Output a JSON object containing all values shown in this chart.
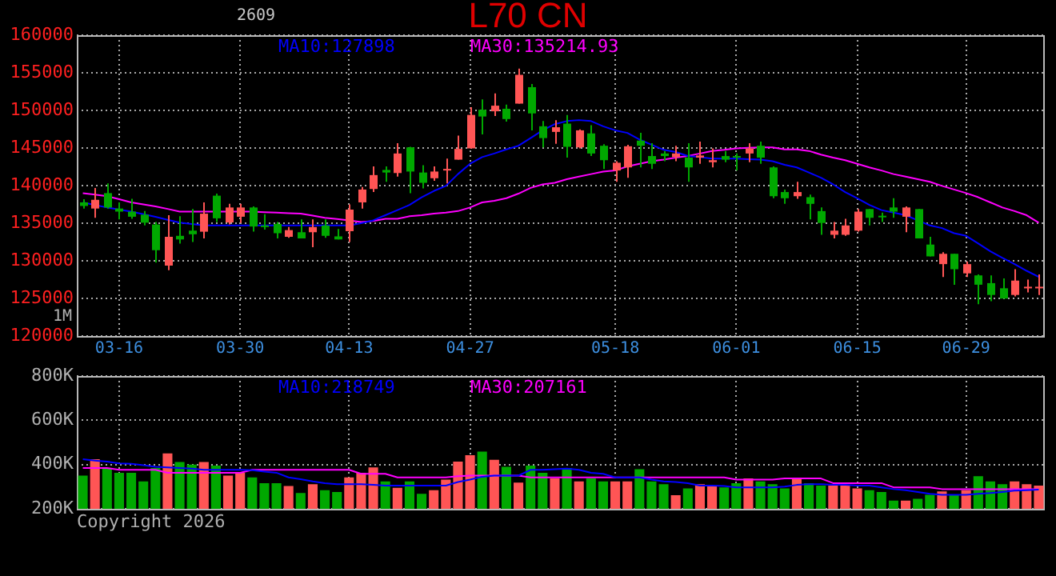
{
  "chart_data": [
    {
      "type": "candlestick",
      "title": "L70 CN",
      "subtitle": "2609",
      "annotations": [
        "1M"
      ],
      "categories": [
        null,
        null,
        null,
        "03-16",
        null,
        null,
        null,
        null,
        null,
        null,
        null,
        null,
        null,
        "03-30",
        null,
        null,
        null,
        null,
        null,
        null,
        null,
        null,
        "04-13",
        null,
        null,
        null,
        null,
        null,
        null,
        null,
        null,
        null,
        "04-27",
        null,
        null,
        null,
        null,
        null,
        null,
        null,
        null,
        null,
        null,
        null,
        "05-18",
        null,
        null,
        null,
        null,
        null,
        null,
        null,
        null,
        null,
        "06-01",
        null,
        null,
        null,
        null,
        null,
        null,
        null,
        null,
        null,
        "06-15",
        null,
        null,
        null,
        null,
        null,
        null,
        null,
        null,
        "06-29",
        null,
        null,
        null,
        null,
        null,
        null
      ],
      "ohlc": [
        [
          137770,
          138180,
          136950,
          137290
        ],
        [
          136950,
          139690,
          135720,
          138110
        ],
        [
          139000,
          140300,
          136950,
          137090
        ],
        [
          136950,
          137770,
          135510,
          136540
        ],
        [
          136540,
          138250,
          135580,
          135860
        ],
        [
          136130,
          136610,
          134700,
          135070
        ],
        [
          134830,
          135170,
          129770,
          131410
        ],
        [
          129360,
          136060,
          128740,
          133190
        ],
        [
          133320,
          135920,
          132300,
          132840
        ],
        [
          134010,
          136880,
          132500,
          133530
        ],
        [
          133870,
          137770,
          132980,
          136270
        ],
        [
          138660,
          138930,
          135170,
          135650
        ],
        [
          135100,
          137570,
          134830,
          137090
        ],
        [
          135860,
          137570,
          135030,
          137090
        ],
        [
          137090,
          137230,
          133870,
          134560
        ],
        [
          134700,
          136200,
          134150,
          134490
        ],
        [
          134900,
          135170,
          132980,
          133670
        ],
        [
          133190,
          134490,
          133050,
          134080
        ],
        [
          133800,
          135510,
          132980,
          132980
        ],
        [
          133800,
          135510,
          131820,
          134490
        ],
        [
          134700,
          135510,
          133050,
          133320
        ],
        [
          133250,
          134220,
          132840,
          132840
        ],
        [
          133940,
          137500,
          132500,
          136810
        ],
        [
          137770,
          139820,
          136950,
          139480
        ],
        [
          139550,
          142560,
          139140,
          141400
        ],
        [
          142080,
          142560,
          140500,
          141740
        ],
        [
          141670,
          145640,
          141190,
          144270
        ],
        [
          145090,
          145160,
          139000,
          141870
        ],
        [
          141740,
          142700,
          139620,
          140370
        ],
        [
          140980,
          142560,
          140640,
          141870
        ],
        [
          142010,
          143580,
          140300,
          142220
        ],
        [
          143450,
          146660,
          143450,
          144880
        ],
        [
          144950,
          150420,
          144950,
          149400
        ],
        [
          150080,
          151450,
          146800,
          149190
        ],
        [
          149880,
          152270,
          149260,
          150630
        ],
        [
          150220,
          150770,
          148510,
          148850
        ],
        [
          150900,
          155550,
          150900,
          154730
        ],
        [
          153090,
          153500,
          147350,
          149600
        ],
        [
          147890,
          148580,
          145090,
          146320
        ],
        [
          147140,
          148710,
          145570,
          147760
        ],
        [
          148240,
          149400,
          143720,
          145160
        ],
        [
          145090,
          147480,
          144950,
          147350
        ],
        [
          146940,
          148030,
          143930,
          144270
        ],
        [
          145300,
          145500,
          142220,
          143380
        ],
        [
          142010,
          143240,
          140500,
          143040
        ],
        [
          142420,
          145430,
          141050,
          145230
        ],
        [
          145980,
          147010,
          142420,
          145300
        ],
        [
          143930,
          145640,
          142220,
          142900
        ],
        [
          144270,
          144610,
          143240,
          143930
        ],
        [
          143790,
          145300,
          143240,
          144270
        ],
        [
          143720,
          145640,
          140500,
          142420
        ],
        [
          143720,
          145840,
          142900,
          144000
        ],
        [
          143110,
          144950,
          142420,
          143380
        ],
        [
          143930,
          144610,
          143110,
          143450
        ],
        [
          143930,
          144270,
          142010,
          143720
        ],
        [
          144270,
          145640,
          143110,
          144950
        ],
        [
          145300,
          145840,
          142900,
          143720
        ],
        [
          142420,
          142560,
          138320,
          138590
        ],
        [
          139140,
          139480,
          137570,
          138320
        ],
        [
          138590,
          140500,
          138250,
          139140
        ],
        [
          138460,
          138800,
          135510,
          137570
        ],
        [
          136610,
          137090,
          133460,
          135030
        ],
        [
          133460,
          135170,
          132980,
          134010
        ],
        [
          133460,
          135580,
          133320,
          134700
        ],
        [
          134010,
          136880,
          133870,
          136540
        ],
        [
          136880,
          136880,
          134700,
          135720
        ],
        [
          135990,
          136400,
          135170,
          135860
        ],
        [
          137090,
          138320,
          135720,
          136540
        ],
        [
          135860,
          137230,
          133800,
          137090
        ],
        [
          136880,
          136880,
          132980,
          132980
        ],
        [
          132160,
          133190,
          130590,
          130590
        ],
        [
          129560,
          131140,
          127850,
          130930
        ],
        [
          130930,
          130930,
          126820,
          128880
        ],
        [
          128330,
          129900,
          127850,
          129560
        ],
        [
          128060,
          128190,
          124230,
          126820
        ],
        [
          127030,
          128060,
          124640,
          125460
        ],
        [
          126350,
          127650,
          124980,
          124980
        ],
        [
          125460,
          128880,
          125260,
          127370
        ],
        [
          126480,
          127510,
          125800,
          126550
        ],
        [
          126480,
          128190,
          125460,
          126550
        ]
      ],
      "colors": [
        "#00a800",
        "#ff5555",
        "#00a800",
        "#00a800",
        "#00a800",
        "#00a800",
        "#00a800",
        "#ff5555",
        "#00a800",
        "#00a800",
        "#ff5555",
        "#00a800",
        "#ff5555",
        "#ff5555",
        "#00a800",
        "#00a800",
        "#00a800",
        "#ff5555",
        "#00a800",
        "#ff5555",
        "#00a800",
        "#00a800",
        "#ff5555",
        "#ff5555",
        "#ff5555",
        "#00a800",
        "#ff5555",
        "#00a800",
        "#00a800",
        "#ff5555",
        "#ff5555",
        "#ff5555",
        "#ff5555",
        "#00a800",
        "#ff5555",
        "#00a800",
        "#ff5555",
        "#00a800",
        "#00a800",
        "#ff5555",
        "#00a800",
        "#ff5555",
        "#00a800",
        "#00a800",
        "#ff5555",
        "#ff5555",
        "#00a800",
        "#00a800",
        "#00a800",
        "#ff5555",
        "#00a800",
        "#ff5555",
        "#ff5555",
        "#00a800",
        "#00a800",
        "#ff5555",
        "#00a800",
        "#00a800",
        "#00a800",
        "#ff5555",
        "#00a800",
        "#00a800",
        "#ff5555",
        "#ff5555",
        "#ff5555",
        "#00a800",
        "#00a800",
        "#00a800",
        "#ff5555",
        "#00a800",
        "#00a800",
        "#ff5555",
        "#00a800",
        "#ff5555",
        "#00a800",
        "#00a800",
        "#00a800",
        "#ff5555",
        "#ff5555",
        "#ff5555"
      ],
      "series": [
        {
          "name": "MA10:127898",
          "type": "line",
          "color": "#0000ff",
          "values": [
            137770,
            137430,
            137090,
            136800,
            136540,
            136200,
            135860,
            135450,
            135070,
            134900,
            134700,
            134700,
            134700,
            134700,
            134700,
            134700,
            134700,
            134700,
            134700,
            134700,
            134700,
            134700,
            134700,
            135000,
            135380,
            136060,
            136740,
            137430,
            138450,
            139280,
            139960,
            141530,
            142900,
            143790,
            144270,
            144820,
            145300,
            146320,
            147350,
            148170,
            148580,
            148710,
            148580,
            147890,
            147350,
            147010,
            146120,
            145440,
            144750,
            144470,
            143930,
            143790,
            143580,
            143580,
            143580,
            143520,
            143450,
            143240,
            142760,
            142420,
            141740,
            141050,
            140160,
            139140,
            138320,
            137430,
            136740,
            136400,
            136060,
            135380,
            134700,
            134350,
            133670,
            133320,
            132300,
            131270,
            130380,
            129560,
            128670,
            127850
          ]
        },
        {
          "name": "MA30:135214.93",
          "type": "line",
          "color": "#ff00ff",
          "values": [
            139000,
            138800,
            138590,
            138200,
            137770,
            137500,
            137230,
            136900,
            136540,
            136540,
            136540,
            136540,
            136540,
            136540,
            136540,
            136470,
            136400,
            136330,
            136270,
            136000,
            135720,
            135550,
            135380,
            135170,
            135300,
            135580,
            135580,
            135920,
            136060,
            136270,
            136400,
            136610,
            137090,
            137770,
            137980,
            138320,
            138930,
            139690,
            140160,
            140370,
            140850,
            141190,
            141530,
            141870,
            142010,
            142560,
            142900,
            143240,
            143450,
            143720,
            143930,
            144270,
            144610,
            144750,
            144950,
            145020,
            145090,
            145090,
            144820,
            144820,
            144610,
            144130,
            143720,
            143380,
            142900,
            142420,
            142010,
            141530,
            141190,
            140850,
            140500,
            139960,
            139480,
            139000,
            138450,
            137770,
            137090,
            136610,
            136060,
            135070
          ]
        }
      ],
      "ylim": [
        120000,
        160000
      ],
      "yticks": [
        120000,
        125000,
        130000,
        135000,
        140000,
        145000,
        150000,
        155000,
        160000
      ],
      "grid": true,
      "legend": "top"
    },
    {
      "type": "bar",
      "annotations": [
        "Copyright 2026"
      ],
      "categories": [
        null,
        null,
        null,
        null,
        null,
        null,
        null,
        null,
        null,
        null,
        null,
        null,
        null,
        null,
        null,
        null,
        null,
        null,
        null,
        null,
        null,
        null,
        null,
        null,
        null,
        null,
        null,
        null,
        null,
        null,
        null,
        null,
        null,
        null,
        null,
        null,
        null,
        null,
        null,
        null,
        null,
        null,
        null,
        null,
        null,
        null,
        null,
        null,
        null,
        null,
        null,
        null,
        null,
        null,
        null,
        null,
        null,
        null,
        null,
        null,
        null,
        null,
        null,
        null,
        null,
        null,
        null,
        null,
        null,
        null,
        null,
        null,
        null,
        null,
        null,
        null,
        null,
        null,
        null,
        null
      ],
      "series": [
        {
          "type": "bar",
          "colors": [
            "#00a800",
            "#ff5555",
            "#00a800",
            "#00a800",
            "#00a800",
            "#00a800",
            "#00a800",
            "#ff5555",
            "#00a800",
            "#00a800",
            "#ff5555",
            "#00a800",
            "#ff5555",
            "#ff5555",
            "#00a800",
            "#00a800",
            "#00a800",
            "#ff5555",
            "#00a800",
            "#ff5555",
            "#00a800",
            "#00a800",
            "#ff5555",
            "#ff5555",
            "#ff5555",
            "#00a800",
            "#ff5555",
            "#00a800",
            "#00a800",
            "#ff5555",
            "#ff5555",
            "#ff5555",
            "#ff5555",
            "#00a800",
            "#ff5555",
            "#00a800",
            "#ff5555",
            "#00a800",
            "#00a800",
            "#ff5555",
            "#00a800",
            "#ff5555",
            "#00a800",
            "#00a800",
            "#ff5555",
            "#ff5555",
            "#00a800",
            "#00a800",
            "#00a800",
            "#ff5555",
            "#00a800",
            "#ff5555",
            "#ff5555",
            "#00a800",
            "#00a800",
            "#ff5555",
            "#00a800",
            "#00a800",
            "#00a800",
            "#ff5555",
            "#00a800",
            "#00a800",
            "#ff5555",
            "#ff5555",
            "#ff5555",
            "#00a800",
            "#00a800",
            "#00a800",
            "#ff5555",
            "#00a800",
            "#00a800",
            "#ff5555",
            "#00a800",
            "#ff5555",
            "#00a800",
            "#00a800",
            "#00a800",
            "#ff5555",
            "#ff5555",
            "#ff5555"
          ],
          "values": [
            350000,
            424000,
            382000,
            363000,
            363000,
            324000,
            384000,
            450000,
            411000,
            400000,
            411000,
            395000,
            350000,
            363000,
            342000,
            316000,
            316000,
            303000,
            271000,
            311000,
            284000,
            276000,
            342000,
            363000,
            387000,
            324000,
            295000,
            324000,
            268000,
            284000,
            332000,
            413000,
            442000,
            458000,
            421000,
            390000,
            318000,
            395000,
            363000,
            337000,
            384000,
            324000,
            337000,
            324000,
            324000,
            324000,
            379000,
            324000,
            311000,
            261000,
            292000,
            311000,
            305000,
            297000,
            316000,
            337000,
            324000,
            311000,
            292000,
            337000,
            316000,
            305000,
            305000,
            305000,
            292000,
            284000,
            276000,
            237000,
            237000,
            245000,
            263000,
            279000,
            263000,
            284000,
            347000,
            324000,
            311000,
            324000,
            311000,
            305000
          ]
        },
        {
          "name": "MA10:218749",
          "type": "line",
          "color": "#0000ff",
          "values": [
            424000,
            418000,
            413000,
            405000,
            403000,
            397000,
            390000,
            387000,
            384000,
            382000,
            376000,
            376000,
            376000,
            376000,
            374000,
            368000,
            363000,
            342000,
            334000,
            324000,
            316000,
            311000,
            311000,
            311000,
            308000,
            305000,
            305000,
            305000,
            305000,
            305000,
            305000,
            321000,
            332000,
            345000,
            350000,
            350000,
            350000,
            376000,
            376000,
            379000,
            382000,
            376000,
            363000,
            358000,
            342000,
            342000,
            342000,
            332000,
            324000,
            321000,
            316000,
            305000,
            305000,
            303000,
            297000,
            297000,
            297000,
            297000,
            300000,
            308000,
            311000,
            311000,
            308000,
            308000,
            305000,
            305000,
            297000,
            289000,
            284000,
            276000,
            268000,
            263000,
            263000,
            263000,
            268000,
            271000,
            276000,
            282000,
            284000,
            287000
          ]
        },
        {
          "name": "MA30:207161",
          "type": "line",
          "color": "#ff00ff",
          "values": [
            384000,
            384000,
            384000,
            376000,
            376000,
            376000,
            376000,
            363000,
            363000,
            363000,
            363000,
            363000,
            363000,
            363000,
            376000,
            376000,
            376000,
            376000,
            376000,
            376000,
            376000,
            376000,
            376000,
            358000,
            358000,
            358000,
            342000,
            342000,
            342000,
            342000,
            342000,
            347000,
            350000,
            350000,
            350000,
            350000,
            350000,
            342000,
            342000,
            342000,
            342000,
            342000,
            342000,
            342000,
            342000,
            342000,
            342000,
            342000,
            342000,
            342000,
            342000,
            342000,
            342000,
            342000,
            332000,
            332000,
            332000,
            332000,
            337000,
            337000,
            337000,
            337000,
            316000,
            316000,
            316000,
            316000,
            316000,
            297000,
            297000,
            297000,
            297000,
            289000,
            289000,
            289000,
            289000,
            289000,
            289000,
            289000,
            289000,
            289000
          ]
        }
      ],
      "ylim": [
        200000,
        800000
      ],
      "yticks": [
        {
          "value": 200000,
          "label": "200K"
        },
        {
          "value": 400000,
          "label": "400K"
        },
        {
          "value": 600000,
          "label": "600K"
        },
        {
          "value": 800000,
          "label": "800K"
        }
      ],
      "grid": true,
      "legend": "top",
      "tick_labels": "y"
    }
  ]
}
